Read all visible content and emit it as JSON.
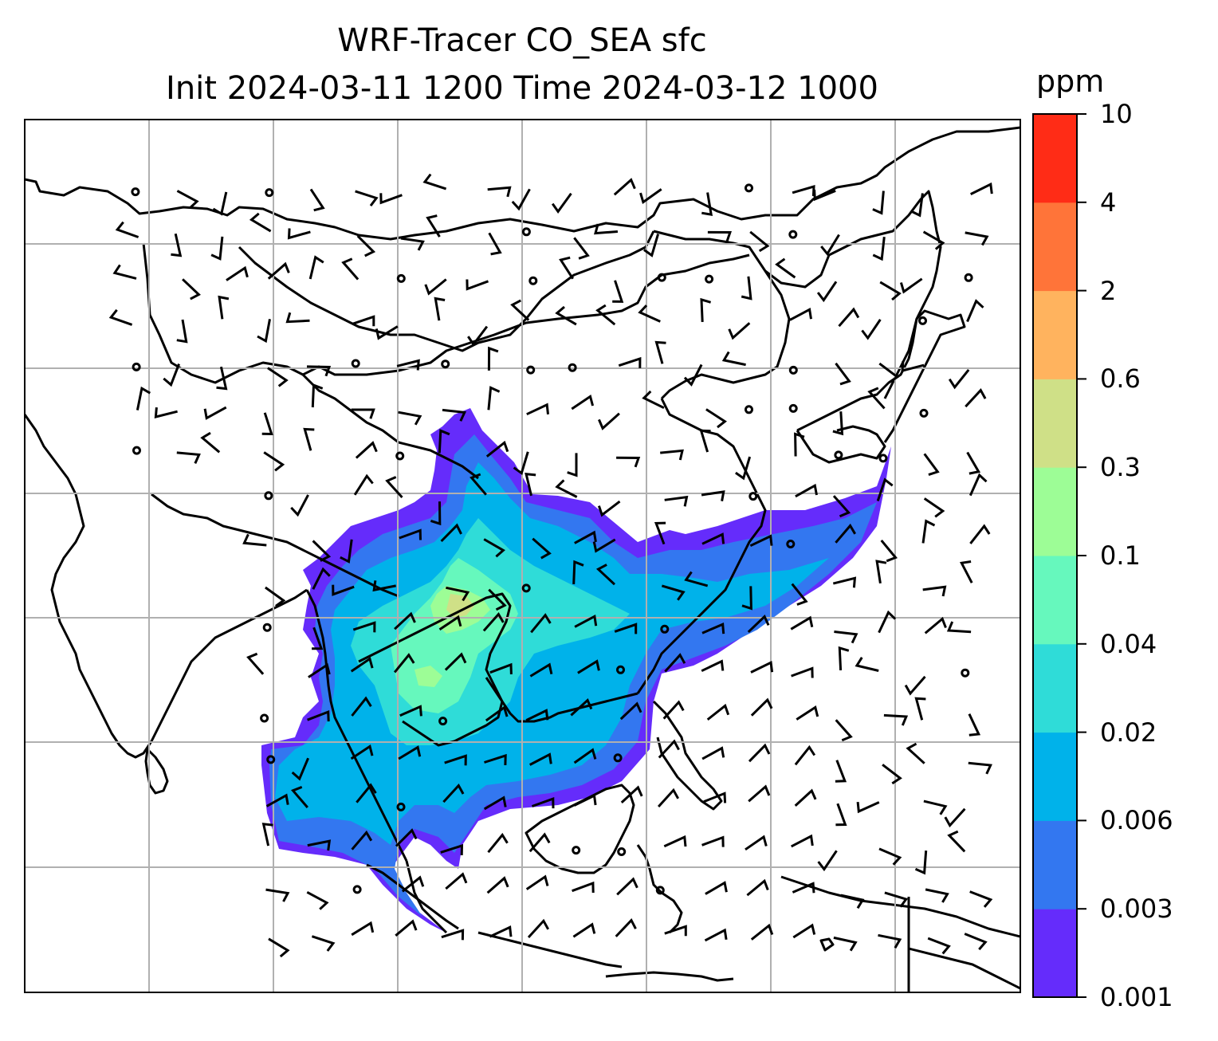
{
  "figure": {
    "title_line1": "WRF-Tracer CO_SEA sfc",
    "title_line2": "Init 2024-03-11 1200 Time 2024-03-12 1000"
  },
  "colorbar": {
    "unit": "ppm",
    "levels": [
      "0.001",
      "0.003",
      "0.006",
      "0.02",
      "0.04",
      "0.1",
      "0.3",
      "0.6",
      "2",
      "4",
      "10"
    ],
    "colors": [
      "#652cfb",
      "#3377f0",
      "#00b2ea",
      "#2fdcd8",
      "#66f8bd",
      "#9dfd96",
      "#cfe087",
      "#ffb35e",
      "#ff7439",
      "#ff2c16"
    ]
  },
  "map": {
    "frame_color": "#000000",
    "grid_color": "#b0b0b0",
    "coastline_color": "#000000",
    "wind_barbs": "black",
    "calm_marker": "circle"
  }
}
